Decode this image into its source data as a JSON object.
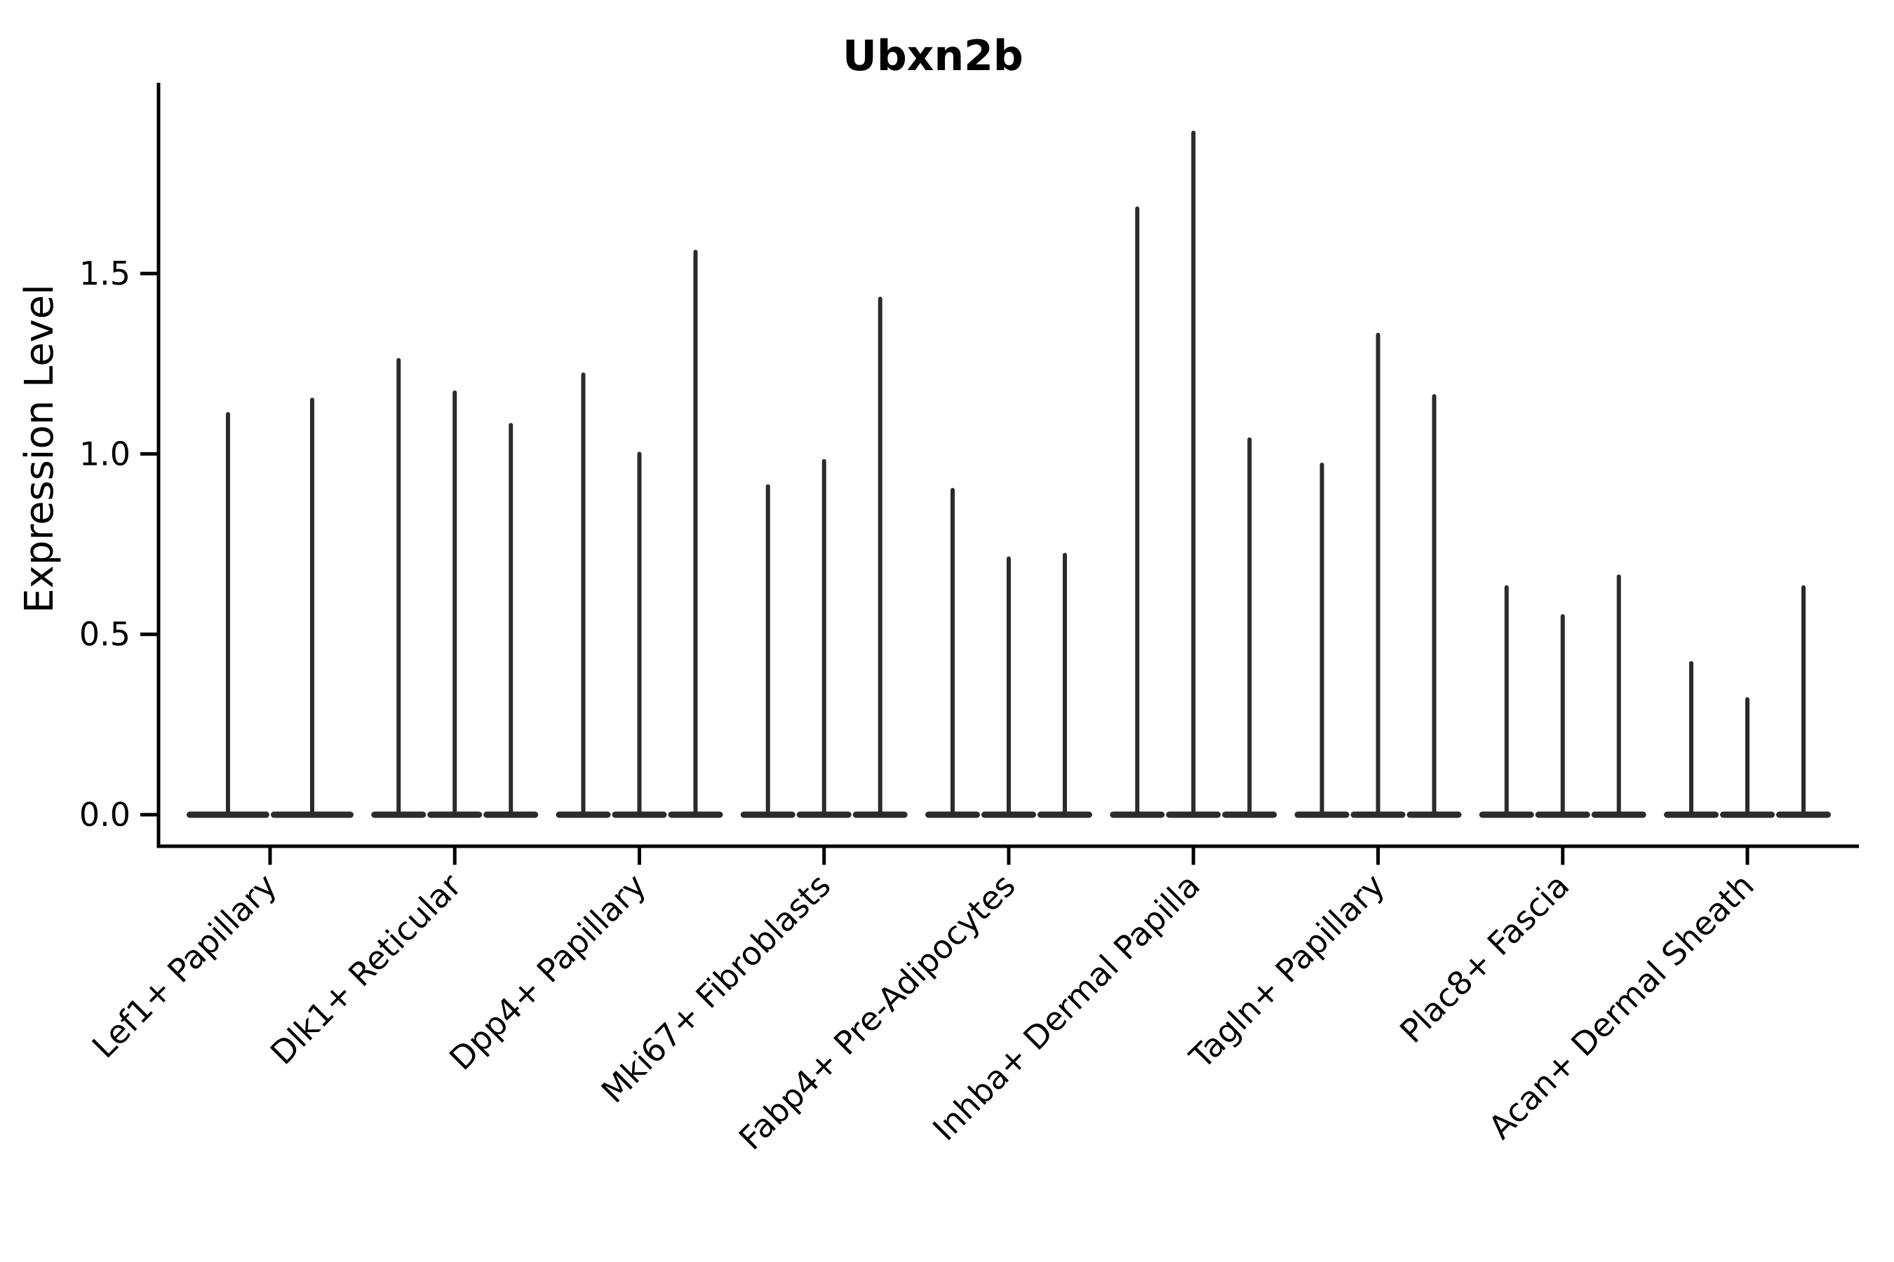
{
  "title": "Ubxn2b",
  "chart_data": {
    "type": "violin",
    "title": "Ubxn2b",
    "xlabel": "",
    "ylabel": "Expression Level",
    "yticks": [
      0.0,
      0.5,
      1.0,
      1.5
    ],
    "ytick_labels": [
      "0.0",
      "0.5",
      "1.0",
      "1.5"
    ],
    "ylim": [
      -0.09,
      2.03
    ],
    "grid": false,
    "legend": "none",
    "categories": [
      "Lef1+ Papillary",
      "Dlk1+ Reticular",
      "Dpp4+ Papillary",
      "Mki67+ Fibroblasts",
      "Fabp4+ Pre-Adipocytes",
      "Inhba+ Dermal Papilla",
      "Tagln+ Papillary",
      "Plac8+ Fascia",
      "Acan+ Dermal Sheath"
    ],
    "groups": [
      {
        "label": "Lef1+ Papillary",
        "violin_max_values": [
          1.11,
          1.15
        ]
      },
      {
        "label": "Dlk1+ Reticular",
        "violin_max_values": [
          1.26,
          1.17,
          1.08
        ]
      },
      {
        "label": "Dpp4+ Papillary",
        "violin_max_values": [
          1.22,
          1.0,
          1.56
        ]
      },
      {
        "label": "Mki67+ Fibroblasts",
        "violin_max_values": [
          0.91,
          0.98,
          1.43
        ]
      },
      {
        "label": "Fabp4+ Pre-Adipocytes",
        "violin_max_values": [
          0.9,
          0.71,
          0.72
        ]
      },
      {
        "label": "Inhba+ Dermal Papilla",
        "violin_max_values": [
          1.68,
          1.89,
          1.04
        ]
      },
      {
        "label": "Tagln+ Papillary",
        "violin_max_values": [
          0.97,
          1.33,
          1.16
        ]
      },
      {
        "label": "Plac8+ Fascia",
        "violin_max_values": [
          0.63,
          0.55,
          0.66
        ]
      },
      {
        "label": "Acan+ Dermal Sheath",
        "violin_max_values": [
          0.42,
          0.32,
          0.63
        ]
      }
    ]
  },
  "colors": {
    "background": "#ffffff",
    "violin": "#2b2b2b",
    "axis": "#000000",
    "text": "#000000"
  }
}
